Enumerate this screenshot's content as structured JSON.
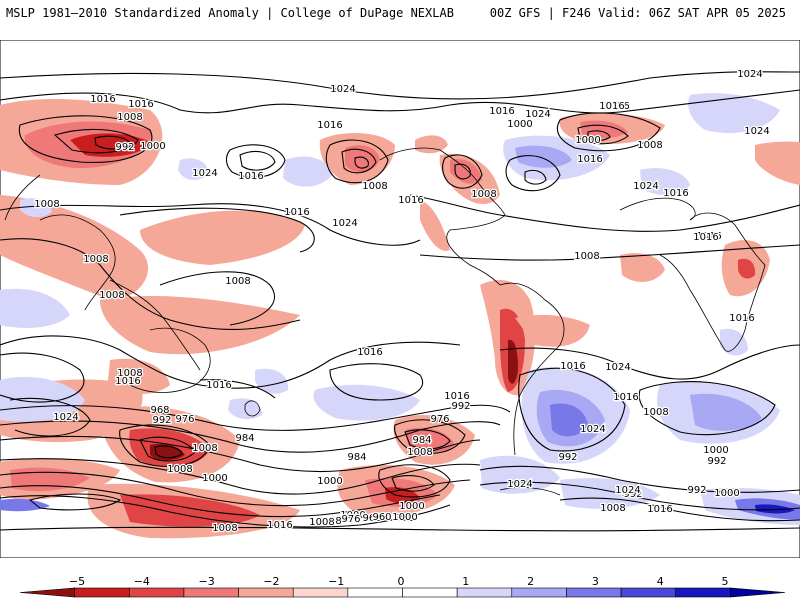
{
  "header": {
    "left_title": "MSLP 1981–2010 Standardized Anomaly | College of DuPage NEXLAB",
    "right_title": "00Z GFS | F246 Valid: 06Z SAT APR 05 2025"
  },
  "colorbar": {
    "ticks": [
      "−5",
      "−4",
      "−3",
      "−2",
      "−1",
      "0",
      "1",
      "2",
      "3",
      "4",
      "5"
    ],
    "colors": [
      "#8b1010",
      "#c81e1e",
      "#e04444",
      "#ef7878",
      "#f6a898",
      "#fcd6ce",
      "#ffffff",
      "#ffffff",
      "#d6d6fa",
      "#a8a8f4",
      "#7878e8",
      "#4848d8",
      "#1818c0",
      "#0000a0"
    ]
  },
  "isobar_labels": [
    {
      "text": "1024"
    },
    {
      "text": "1016"
    },
    {
      "text": "1016"
    },
    {
      "text": "1008"
    },
    {
      "text": "1000"
    },
    {
      "text": "992"
    },
    {
      "text": "1024"
    },
    {
      "text": "1016"
    },
    {
      "text": "1008"
    },
    {
      "text": "1016"
    },
    {
      "text": "1008"
    },
    {
      "text": "1024"
    },
    {
      "text": "1016"
    },
    {
      "text": "1008"
    },
    {
      "text": "1016"
    },
    {
      "text": "1016"
    },
    {
      "text": "1000"
    },
    {
      "text": "1008"
    },
    {
      "text": "1024"
    },
    {
      "text": "1016"
    },
    {
      "text": "1008"
    },
    {
      "text": "1016"
    },
    {
      "text": "1008"
    },
    {
      "text": "1008"
    },
    {
      "text": "1008"
    },
    {
      "text": "1016"
    },
    {
      "text": "1024"
    },
    {
      "text": "1016"
    },
    {
      "text": "1016"
    },
    {
      "text": "1024"
    },
    {
      "text": "1016"
    },
    {
      "text": "1024"
    },
    {
      "text": "1016"
    },
    {
      "text": "1008"
    },
    {
      "text": "1024"
    },
    {
      "text": "1016"
    },
    {
      "text": "1016"
    },
    {
      "text": "1016"
    },
    {
      "text": "1016"
    },
    {
      "text": "1016"
    },
    {
      "text": "1024"
    },
    {
      "text": "1000"
    },
    {
      "text": "992"
    },
    {
      "text": "1024"
    },
    {
      "text": "1016"
    },
    {
      "text": "1008"
    },
    {
      "text": "1000"
    },
    {
      "text": "984"
    },
    {
      "text": "992"
    },
    {
      "text": "968"
    },
    {
      "text": "992"
    },
    {
      "text": "976"
    },
    {
      "text": "1008"
    },
    {
      "text": "984"
    },
    {
      "text": "1008"
    },
    {
      "text": "1000"
    },
    {
      "text": "992"
    },
    {
      "text": "976"
    },
    {
      "text": "984"
    },
    {
      "text": "1000"
    },
    {
      "text": "984"
    },
    {
      "text": "1008"
    },
    {
      "text": "1000"
    },
    {
      "text": "1008"
    },
    {
      "text": "976"
    },
    {
      "text": "968"
    },
    {
      "text": "992"
    },
    {
      "text": "960"
    },
    {
      "text": "1000"
    },
    {
      "text": "1008"
    },
    {
      "text": "1016"
    },
    {
      "text": "1008"
    },
    {
      "text": "1024"
    },
    {
      "text": "1000"
    },
    {
      "text": "992"
    },
    {
      "text": "1024"
    },
    {
      "text": "992"
    },
    {
      "text": "1000"
    },
    {
      "text": "1008"
    },
    {
      "text": "1016"
    }
  ]
}
